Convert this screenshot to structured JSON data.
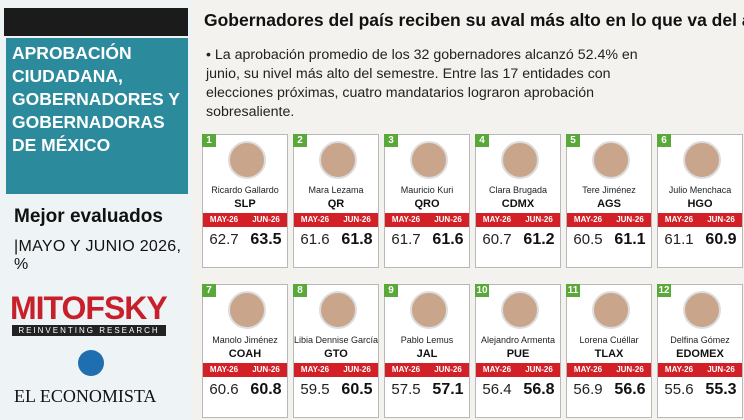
{
  "sidebar": {
    "title": "APROBACIÓN CIUDADANA, GOBERNADORES Y GOBERNADORAS DE MÉXICO",
    "subtitle": "Mejor evaluados",
    "period": "|MAYO Y JUNIO 2026, %",
    "brand": "MITOFSKY",
    "tagline": "REINVENTING RESEARCH",
    "publisher": "EL ECONOMISTA"
  },
  "header": {
    "title": "Gobernadores del país reciben su aval más alto en lo que va del año",
    "text": "• La aprobación promedio de los 32 gobernadores alcanzó 52.4% en junio, su nivel más alto del semestre. Entre las 17 entidades con elecciones próximas, cuatro mandatarios lograron aprobación sobresaliente."
  },
  "columns": [
    "MAY-26",
    "JUN-26"
  ],
  "cards": [
    {
      "rank": 1,
      "name": "Ricardo Gallardo",
      "state": "SLP",
      "may": 62.7,
      "jun": 63.5
    },
    {
      "rank": 2,
      "name": "Mara Lezama",
      "state": "QR",
      "may": 61.6,
      "jun": 61.8
    },
    {
      "rank": 3,
      "name": "Mauricio Kuri",
      "state": "QRO",
      "may": 61.7,
      "jun": 61.6
    },
    {
      "rank": 4,
      "name": "Clara Brugada",
      "state": "CDMX",
      "may": 60.7,
      "jun": 61.2
    },
    {
      "rank": 5,
      "name": "Tere Jiménez",
      "state": "AGS",
      "may": 60.5,
      "jun": 61.1
    },
    {
      "rank": 6,
      "name": "Julio Menchaca",
      "state": "HGO",
      "may": 61.1,
      "jun": 60.9
    },
    {
      "rank": 7,
      "name": "Manolo Jiménez",
      "state": "COAH",
      "may": 60.6,
      "jun": 60.8
    },
    {
      "rank": 8,
      "name": "Libia Dennise García",
      "state": "GTO",
      "may": 59.5,
      "jun": 60.5
    },
    {
      "rank": 9,
      "name": "Pablo Lemus",
      "state": "JAL",
      "may": 57.5,
      "jun": 57.1
    },
    {
      "rank": 10,
      "name": "Alejandro Armenta",
      "state": "PUE",
      "may": 56.4,
      "jun": 56.8
    },
    {
      "rank": 11,
      "name": "Lorena Cuéllar",
      "state": "TLAX",
      "may": 56.9,
      "jun": 56.6
    },
    {
      "rank": 12,
      "name": "Delfina Gómez",
      "state": "EDOMEX",
      "may": 55.6,
      "jun": 55.3
    }
  ]
}
